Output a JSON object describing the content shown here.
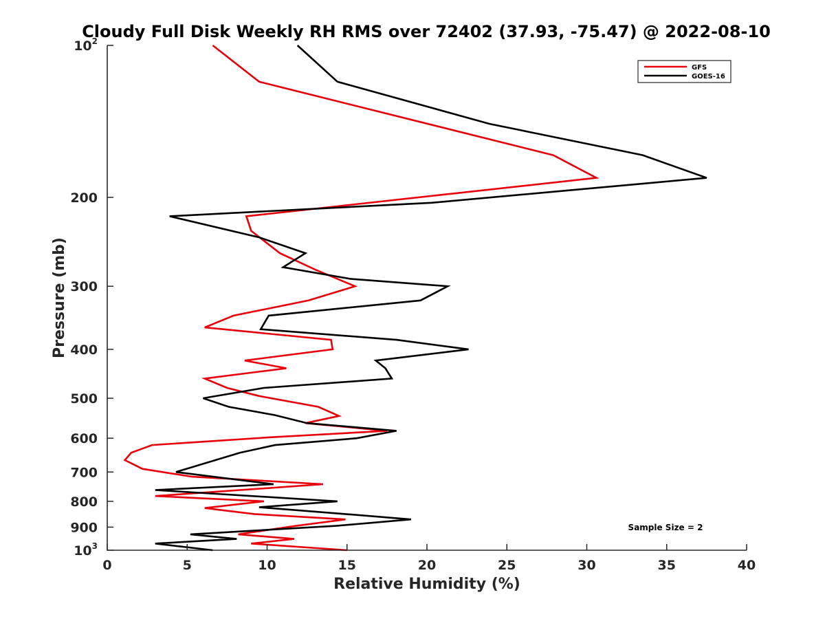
{
  "chart_data": {
    "type": "line",
    "title": "Cloudy Full Disk Weekly RH RMS over 72402 (37.93, -75.47) @ 2022-08-10",
    "xlabel": "Relative Humidity (%)",
    "ylabel": "Pressure (mb)",
    "xlim": [
      0,
      40
    ],
    "ylim": [
      100,
      1000
    ],
    "y_scale": "log",
    "y_reversed": true,
    "x_ticks": [
      "0",
      "5",
      "10",
      "15",
      "20",
      "25",
      "30",
      "35",
      "40"
    ],
    "y_ticks": [
      {
        "value": 100,
        "label": "10",
        "sup": "2"
      },
      {
        "value": 200,
        "label": "200",
        "sup": ""
      },
      {
        "value": 300,
        "label": "300",
        "sup": ""
      },
      {
        "value": 400,
        "label": "400",
        "sup": ""
      },
      {
        "value": 500,
        "label": "500",
        "sup": ""
      },
      {
        "value": 600,
        "label": "600",
        "sup": ""
      },
      {
        "value": 700,
        "label": "700",
        "sup": ""
      },
      {
        "value": 800,
        "label": "800",
        "sup": ""
      },
      {
        "value": 900,
        "label": "900",
        "sup": ""
      },
      {
        "value": 1000,
        "label": "10",
        "sup": "3"
      }
    ],
    "grid": false,
    "legend_position": "top-right",
    "annotation": "Sample Size = 2",
    "series": [
      {
        "name": "GFS",
        "color": "#e8000b",
        "points": [
          [
            6.6,
            100
          ],
          [
            9.5,
            118
          ],
          [
            27.9,
            165
          ],
          [
            30.6,
            183
          ],
          [
            8.7,
            218
          ],
          [
            9.0,
            233
          ],
          [
            10.8,
            258
          ],
          [
            13.0,
            278
          ],
          [
            15.5,
            300
          ],
          [
            12.6,
            320
          ],
          [
            7.9,
            343
          ],
          [
            6.1,
            362
          ],
          [
            14.0,
            383
          ],
          [
            14.1,
            400
          ],
          [
            8.6,
            421
          ],
          [
            11.2,
            436
          ],
          [
            6.1,
            457
          ],
          [
            7.5,
            477
          ],
          [
            9.5,
            495
          ],
          [
            13.2,
            520
          ],
          [
            14.5,
            542
          ],
          [
            12.4,
            560
          ],
          [
            17.5,
            580
          ],
          [
            10.0,
            598
          ],
          [
            2.8,
            619
          ],
          [
            1.5,
            641
          ],
          [
            1.1,
            663
          ],
          [
            2.2,
            690
          ],
          [
            5.3,
            715
          ],
          [
            13.5,
            740
          ],
          [
            3.0,
            781
          ],
          [
            9.8,
            800
          ],
          [
            6.1,
            825
          ],
          [
            9.2,
            848
          ],
          [
            14.9,
            869
          ],
          [
            11.8,
            895
          ],
          [
            8.2,
            930
          ],
          [
            11.7,
            950
          ],
          [
            9.0,
            970
          ],
          [
            15.0,
            1000
          ]
        ]
      },
      {
        "name": "GOES-16",
        "color": "#000000",
        "points": [
          [
            11.9,
            100
          ],
          [
            14.4,
            118
          ],
          [
            23.9,
            143
          ],
          [
            33.5,
            165
          ],
          [
            37.5,
            183
          ],
          [
            20.3,
            205
          ],
          [
            3.9,
            218
          ],
          [
            9.5,
            240
          ],
          [
            12.4,
            258
          ],
          [
            11.0,
            275
          ],
          [
            15.2,
            290
          ],
          [
            21.3,
            300
          ],
          [
            19.6,
            320
          ],
          [
            10.1,
            343
          ],
          [
            9.6,
            365
          ],
          [
            18.1,
            383
          ],
          [
            22.6,
            400
          ],
          [
            16.8,
            421
          ],
          [
            17.4,
            436
          ],
          [
            17.8,
            457
          ],
          [
            9.8,
            477
          ],
          [
            6.0,
            500
          ],
          [
            7.6,
            520
          ],
          [
            10.5,
            540
          ],
          [
            12.5,
            560
          ],
          [
            18.1,
            580
          ],
          [
            15.6,
            600
          ],
          [
            10.5,
            619
          ],
          [
            8.3,
            641
          ],
          [
            4.3,
            700
          ],
          [
            10.4,
            740
          ],
          [
            3.0,
            760
          ],
          [
            14.4,
            800
          ],
          [
            9.5,
            822
          ],
          [
            14.9,
            848
          ],
          [
            19.0,
            869
          ],
          [
            14.3,
            895
          ],
          [
            5.2,
            930
          ],
          [
            8.1,
            950
          ],
          [
            3.0,
            970
          ],
          [
            6.6,
            1000
          ]
        ]
      }
    ]
  }
}
